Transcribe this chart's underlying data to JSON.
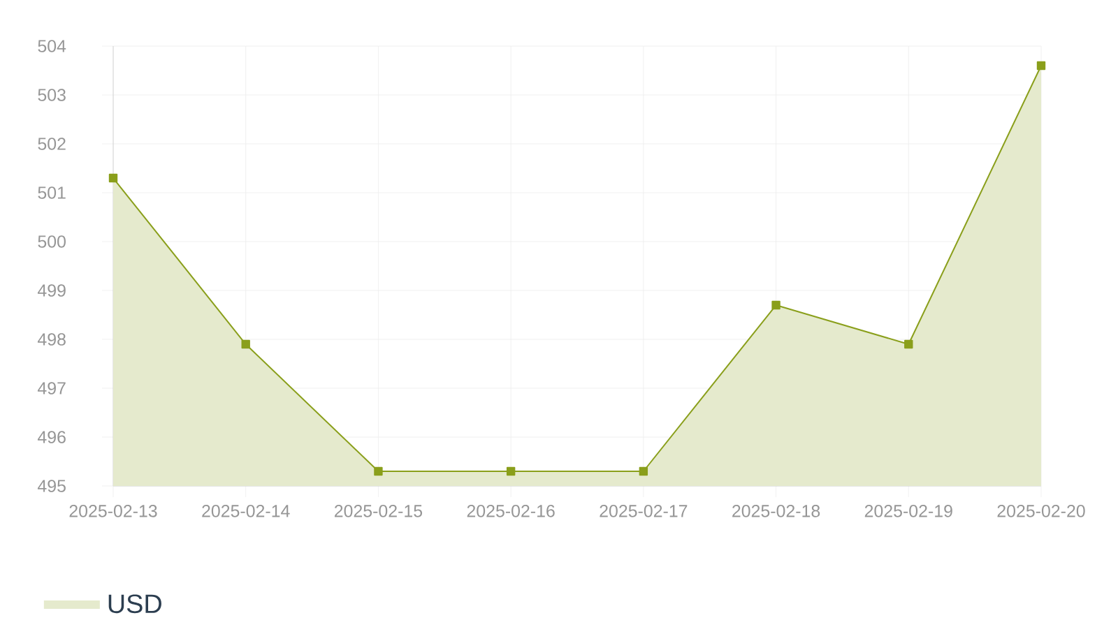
{
  "chart_data": {
    "type": "area",
    "categories": [
      "2025-02-13",
      "2025-02-14",
      "2025-02-15",
      "2025-02-16",
      "2025-02-17",
      "2025-02-18",
      "2025-02-19",
      "2025-02-20"
    ],
    "series": [
      {
        "name": "USD",
        "color": "#8a9f1b",
        "values": [
          501.3,
          497.9,
          495.3,
          495.3,
          495.3,
          498.7,
          497.9,
          503.6
        ]
      }
    ],
    "ylim": [
      495,
      504
    ],
    "yticks": [
      495,
      496,
      497,
      498,
      499,
      500,
      501,
      502,
      503,
      504
    ],
    "grid": true,
    "legend": "bottom left",
    "marker": "square"
  }
}
